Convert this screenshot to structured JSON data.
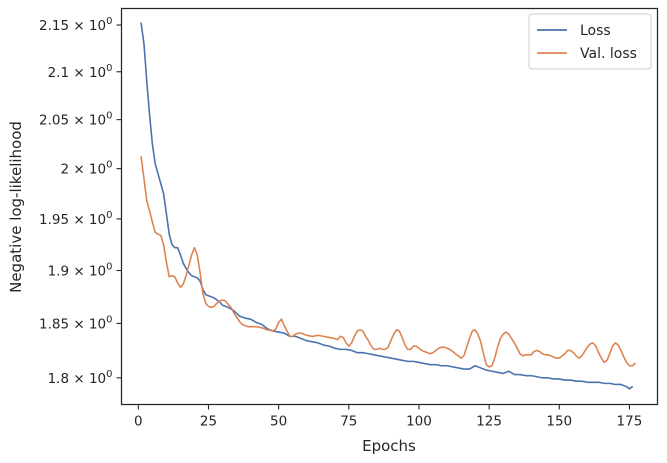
{
  "chart_data": {
    "type": "line",
    "xlabel": "Epochs",
    "ylabel": "Negative log-likelihood",
    "xlim": [
      -6,
      185
    ],
    "ylim": [
      1.776,
      2.168
    ],
    "y_scale": "log",
    "grid": false,
    "legend_position": "top-right",
    "x_ticks": [
      0,
      25,
      50,
      75,
      100,
      125,
      150,
      175
    ],
    "y_ticks": [
      {
        "value": 1.8,
        "mantissa": "1.8"
      },
      {
        "value": 1.85,
        "mantissa": "1.85"
      },
      {
        "value": 1.9,
        "mantissa": "1.9"
      },
      {
        "value": 1.95,
        "mantissa": "1.95"
      },
      {
        "value": 2.0,
        "mantissa": "2"
      },
      {
        "value": 2.05,
        "mantissa": "2.05"
      },
      {
        "value": 2.1,
        "mantissa": "2.1"
      },
      {
        "value": 2.15,
        "mantissa": "2.15"
      }
    ],
    "y_tick_suffix": "× 10",
    "y_tick_exponent": "0",
    "series": [
      {
        "name": "Loss",
        "color": "#4c72b0",
        "points": [
          [
            1,
            2.152
          ],
          [
            2,
            2.13
          ],
          [
            3,
            2.09
          ],
          [
            4,
            2.055
          ],
          [
            5,
            2.025
          ],
          [
            6,
            2.005
          ],
          [
            7,
            1.995
          ],
          [
            8,
            1.985
          ],
          [
            9,
            1.975
          ],
          [
            10,
            1.955
          ],
          [
            11,
            1.935
          ],
          [
            12,
            1.925
          ],
          [
            13,
            1.922
          ],
          [
            14,
            1.922
          ],
          [
            15,
            1.915
          ],
          [
            16,
            1.907
          ],
          [
            17,
            1.902
          ],
          [
            18,
            1.898
          ],
          [
            19,
            1.895
          ],
          [
            20,
            1.894
          ],
          [
            21,
            1.893
          ],
          [
            22,
            1.89
          ],
          [
            23,
            1.882
          ],
          [
            24,
            1.877
          ],
          [
            25,
            1.876
          ],
          [
            26,
            1.875
          ],
          [
            27,
            1.874
          ],
          [
            28,
            1.872
          ],
          [
            29,
            1.87
          ],
          [
            30,
            1.867
          ],
          [
            32,
            1.865
          ],
          [
            34,
            1.862
          ],
          [
            36,
            1.857
          ],
          [
            38,
            1.855
          ],
          [
            40,
            1.854
          ],
          [
            42,
            1.851
          ],
          [
            44,
            1.849
          ],
          [
            46,
            1.845
          ],
          [
            48,
            1.843
          ],
          [
            50,
            1.842
          ],
          [
            52,
            1.841
          ],
          [
            54,
            1.838
          ],
          [
            56,
            1.838
          ],
          [
            58,
            1.836
          ],
          [
            60,
            1.834
          ],
          [
            62,
            1.833
          ],
          [
            64,
            1.832
          ],
          [
            66,
            1.83
          ],
          [
            68,
            1.829
          ],
          [
            70,
            1.827
          ],
          [
            72,
            1.826
          ],
          [
            74,
            1.826
          ],
          [
            76,
            1.825
          ],
          [
            78,
            1.823
          ],
          [
            80,
            1.823
          ],
          [
            82,
            1.822
          ],
          [
            84,
            1.821
          ],
          [
            86,
            1.82
          ],
          [
            88,
            1.819
          ],
          [
            90,
            1.818
          ],
          [
            92,
            1.817
          ],
          [
            94,
            1.816
          ],
          [
            96,
            1.815
          ],
          [
            98,
            1.815
          ],
          [
            100,
            1.814
          ],
          [
            102,
            1.813
          ],
          [
            104,
            1.812
          ],
          [
            106,
            1.812
          ],
          [
            108,
            1.811
          ],
          [
            110,
            1.811
          ],
          [
            112,
            1.81
          ],
          [
            114,
            1.809
          ],
          [
            116,
            1.808
          ],
          [
            118,
            1.808
          ],
          [
            120,
            1.811
          ],
          [
            122,
            1.809
          ],
          [
            124,
            1.807
          ],
          [
            126,
            1.806
          ],
          [
            128,
            1.805
          ],
          [
            130,
            1.804
          ],
          [
            132,
            1.806
          ],
          [
            134,
            1.803
          ],
          [
            136,
            1.803
          ],
          [
            138,
            1.802
          ],
          [
            140,
            1.802
          ],
          [
            142,
            1.801
          ],
          [
            144,
            1.8
          ],
          [
            146,
            1.8
          ],
          [
            148,
            1.799
          ],
          [
            150,
            1.799
          ],
          [
            152,
            1.798
          ],
          [
            154,
            1.798
          ],
          [
            156,
            1.797
          ],
          [
            158,
            1.797
          ],
          [
            160,
            1.796
          ],
          [
            162,
            1.796
          ],
          [
            164,
            1.796
          ],
          [
            166,
            1.795
          ],
          [
            168,
            1.795
          ],
          [
            170,
            1.794
          ],
          [
            172,
            1.794
          ],
          [
            174,
            1.792
          ],
          [
            175,
            1.79
          ],
          [
            176,
            1.792
          ]
        ]
      },
      {
        "name": "Val. loss",
        "color": "#dd8452",
        "points": [
          [
            1,
            2.012
          ],
          [
            2,
            1.99
          ],
          [
            3,
            1.968
          ],
          [
            4,
            1.958
          ],
          [
            5,
            1.947
          ],
          [
            6,
            1.937
          ],
          [
            7,
            1.935
          ],
          [
            8,
            1.934
          ],
          [
            9,
            1.925
          ],
          [
            10,
            1.908
          ],
          [
            11,
            1.894
          ],
          [
            12,
            1.895
          ],
          [
            13,
            1.894
          ],
          [
            14,
            1.888
          ],
          [
            15,
            1.884
          ],
          [
            16,
            1.887
          ],
          [
            17,
            1.895
          ],
          [
            18,
            1.905
          ],
          [
            19,
            1.915
          ],
          [
            20,
            1.922
          ],
          [
            21,
            1.915
          ],
          [
            22,
            1.898
          ],
          [
            23,
            1.878
          ],
          [
            24,
            1.869
          ],
          [
            25,
            1.866
          ],
          [
            26,
            1.865
          ],
          [
            27,
            1.866
          ],
          [
            28,
            1.869
          ],
          [
            29,
            1.871
          ],
          [
            30,
            1.872
          ],
          [
            31,
            1.871
          ],
          [
            32,
            1.868
          ],
          [
            33,
            1.865
          ],
          [
            34,
            1.86
          ],
          [
            35,
            1.856
          ],
          [
            36,
            1.852
          ],
          [
            37,
            1.849
          ],
          [
            38,
            1.848
          ],
          [
            39,
            1.847
          ],
          [
            40,
            1.847
          ],
          [
            42,
            1.847
          ],
          [
            44,
            1.846
          ],
          [
            46,
            1.844
          ],
          [
            48,
            1.843
          ],
          [
            49,
            1.845
          ],
          [
            50,
            1.851
          ],
          [
            51,
            1.854
          ],
          [
            52,
            1.848
          ],
          [
            53,
            1.843
          ],
          [
            54,
            1.838
          ],
          [
            55,
            1.838
          ],
          [
            56,
            1.84
          ],
          [
            57,
            1.841
          ],
          [
            58,
            1.841
          ],
          [
            60,
            1.839
          ],
          [
            62,
            1.838
          ],
          [
            64,
            1.839
          ],
          [
            66,
            1.838
          ],
          [
            68,
            1.837
          ],
          [
            70,
            1.836
          ],
          [
            71,
            1.835
          ],
          [
            72,
            1.838
          ],
          [
            73,
            1.837
          ],
          [
            74,
            1.832
          ],
          [
            75,
            1.829
          ],
          [
            76,
            1.832
          ],
          [
            77,
            1.838
          ],
          [
            78,
            1.843
          ],
          [
            79,
            1.844
          ],
          [
            80,
            1.843
          ],
          [
            81,
            1.838
          ],
          [
            82,
            1.834
          ],
          [
            83,
            1.829
          ],
          [
            84,
            1.826
          ],
          [
            85,
            1.826
          ],
          [
            86,
            1.827
          ],
          [
            87,
            1.826
          ],
          [
            88,
            1.826
          ],
          [
            89,
            1.828
          ],
          [
            90,
            1.834
          ],
          [
            91,
            1.84
          ],
          [
            92,
            1.844
          ],
          [
            93,
            1.843
          ],
          [
            94,
            1.837
          ],
          [
            95,
            1.83
          ],
          [
            96,
            1.826
          ],
          [
            97,
            1.826
          ],
          [
            98,
            1.829
          ],
          [
            99,
            1.829
          ],
          [
            100,
            1.827
          ],
          [
            101,
            1.825
          ],
          [
            102,
            1.824
          ],
          [
            103,
            1.823
          ],
          [
            104,
            1.822
          ],
          [
            105,
            1.823
          ],
          [
            106,
            1.825
          ],
          [
            107,
            1.827
          ],
          [
            108,
            1.828
          ],
          [
            109,
            1.828
          ],
          [
            110,
            1.827
          ],
          [
            111,
            1.826
          ],
          [
            112,
            1.824
          ],
          [
            113,
            1.822
          ],
          [
            114,
            1.82
          ],
          [
            115,
            1.818
          ],
          [
            116,
            1.82
          ],
          [
            117,
            1.828
          ],
          [
            118,
            1.836
          ],
          [
            119,
            1.843
          ],
          [
            120,
            1.844
          ],
          [
            121,
            1.84
          ],
          [
            122,
            1.833
          ],
          [
            123,
            1.822
          ],
          [
            124,
            1.812
          ],
          [
            125,
            1.81
          ],
          [
            126,
            1.811
          ],
          [
            127,
            1.818
          ],
          [
            128,
            1.828
          ],
          [
            129,
            1.836
          ],
          [
            130,
            1.84
          ],
          [
            131,
            1.842
          ],
          [
            132,
            1.84
          ],
          [
            133,
            1.836
          ],
          [
            134,
            1.832
          ],
          [
            135,
            1.827
          ],
          [
            136,
            1.822
          ],
          [
            137,
            1.82
          ],
          [
            138,
            1.821
          ],
          [
            139,
            1.821
          ],
          [
            140,
            1.821
          ],
          [
            141,
            1.824
          ],
          [
            142,
            1.825
          ],
          [
            143,
            1.824
          ],
          [
            144,
            1.822
          ],
          [
            145,
            1.821
          ],
          [
            146,
            1.821
          ],
          [
            147,
            1.82
          ],
          [
            148,
            1.819
          ],
          [
            149,
            1.818
          ],
          [
            150,
            1.818
          ],
          [
            151,
            1.82
          ],
          [
            152,
            1.822
          ],
          [
            153,
            1.825
          ],
          [
            154,
            1.825
          ],
          [
            155,
            1.823
          ],
          [
            156,
            1.82
          ],
          [
            157,
            1.818
          ],
          [
            158,
            1.82
          ],
          [
            159,
            1.824
          ],
          [
            160,
            1.828
          ],
          [
            161,
            1.831
          ],
          [
            162,
            1.832
          ],
          [
            163,
            1.829
          ],
          [
            164,
            1.823
          ],
          [
            165,
            1.818
          ],
          [
            166,
            1.814
          ],
          [
            167,
            1.816
          ],
          [
            168,
            1.822
          ],
          [
            169,
            1.829
          ],
          [
            170,
            1.832
          ],
          [
            171,
            1.83
          ],
          [
            172,
            1.825
          ],
          [
            173,
            1.819
          ],
          [
            174,
            1.814
          ],
          [
            175,
            1.811
          ],
          [
            176,
            1.811
          ],
          [
            177,
            1.813
          ]
        ]
      }
    ]
  }
}
